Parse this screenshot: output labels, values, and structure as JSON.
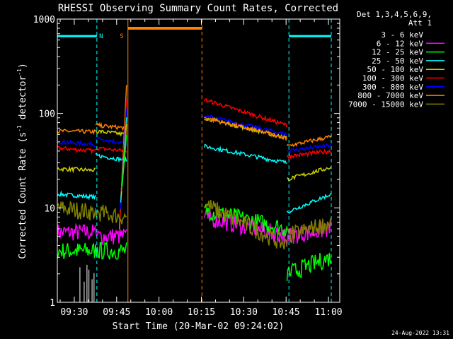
{
  "chart_data": {
    "type": "line",
    "title": "RHESSI Observing Summary Count Rates, Corrected",
    "xlabel": "Start Time (20-Mar-02 09:24:02)",
    "ylabel_main": "Corrected Count Rate (s",
    "ylabel_sup1": "-1",
    "ylabel_mid": " detector",
    "ylabel_sup2": "-1",
    "ylabel_end": ")",
    "yscale": "log",
    "ylim": [
      1,
      1000
    ],
    "xlim_minutes": [
      0,
      100
    ],
    "y_ticks": [
      {
        "value": 1,
        "label": "1"
      },
      {
        "value": 10,
        "label": "10"
      },
      {
        "value": 100,
        "label": "100"
      },
      {
        "value": 1000,
        "label": "1000"
      }
    ],
    "x_ticks": [
      {
        "minute": 6,
        "label": "09:30"
      },
      {
        "minute": 21,
        "label": "09:45"
      },
      {
        "minute": 36,
        "label": "10:00"
      },
      {
        "minute": 51,
        "label": "10:15"
      },
      {
        "minute": 66,
        "label": "10:30"
      },
      {
        "minute": 81,
        "label": "10:45"
      },
      {
        "minute": 96,
        "label": "11:00"
      }
    ],
    "legend_header": [
      "Det 1,3,4,5,6,9,",
      "Att 1"
    ],
    "series": [
      {
        "name": "3 - 6 keV",
        "color": "#000000"
      },
      {
        "name": "6 - 12 keV",
        "color": "#ff00ff"
      },
      {
        "name": "12 - 25 keV",
        "color": "#00ff00"
      },
      {
        "name": "25 - 50 keV",
        "color": "#00ffff"
      },
      {
        "name": "50 - 100 keV",
        "color": "#d0d000"
      },
      {
        "name": "100 - 300 keV",
        "color": "#ff0000"
      },
      {
        "name": "300 - 800 keV",
        "color": "#0000ff"
      },
      {
        "name": "800 - 7000 keV",
        "color": "#ff8000"
      },
      {
        "name": "7000 - 15000 keV",
        "color": "#808000"
      }
    ],
    "segments": [
      {
        "start": 0,
        "end": 13.5,
        "values": {
          "6 - 12 keV": [
            5.5,
            5.5
          ],
          "12 - 25 keV": [
            3.5,
            3.5
          ],
          "25 - 50 keV": [
            14,
            13
          ],
          "50 - 100 keV": [
            26,
            25
          ],
          "100 - 300 keV": [
            43,
            40
          ],
          "300 - 800 keV": [
            50,
            47
          ],
          "800 - 7000 keV": [
            65,
            64
          ],
          "7000 - 15000 keV": [
            10,
            9
          ]
        }
      },
      {
        "start": 13.5,
        "end": 24.5,
        "values": {
          "6 - 12 keV": [
            5,
            5
          ],
          "12 - 25 keV": [
            3.5,
            3.5
          ],
          "25 - 50 keV": [
            36,
            32
          ],
          "50 - 100 keV": [
            65,
            60
          ],
          "100 - 300 keV": [
            43,
            40
          ],
          "300 - 800 keV": [
            55,
            48
          ],
          "800 - 7000 keV": [
            75,
            70
          ],
          "7000 - 15000 keV": [
            9,
            8
          ]
        }
      },
      {
        "start": 52,
        "end": 81.3,
        "values": {
          "6 - 12 keV": [
            8,
            5
          ],
          "12 - 25 keV": [
            9.5,
            6
          ],
          "25 - 50 keV": [
            45,
            30
          ],
          "50 - 100 keV": [
            90,
            55
          ],
          "100 - 300 keV": [
            140,
            75
          ],
          "300 - 800 keV": [
            95,
            60
          ],
          "800 - 7000 keV": [
            90,
            55
          ],
          "7000 - 15000 keV": [
            11,
            4
          ]
        }
      },
      {
        "start": 81.3,
        "end": 97,
        "values": {
          "6 - 12 keV": [
            5,
            6
          ],
          "12 - 25 keV": [
            2,
            3
          ],
          "25 - 50 keV": [
            9,
            14
          ],
          "50 - 100 keV": [
            20,
            27
          ],
          "100 - 300 keV": [
            35,
            40
          ],
          "300 - 800 keV": [
            40,
            46
          ],
          "800 - 7000 keV": [
            45,
            57
          ],
          "7000 - 15000 keV": [
            5,
            7
          ]
        }
      }
    ],
    "rise": {
      "start": 22,
      "end": 24.5,
      "range": [
        6,
        200
      ]
    },
    "saa_bar": {
      "start": 25,
      "end": 51.2,
      "value": 800
    },
    "night_bars": [
      {
        "start": 0,
        "end": 14,
        "value": 660
      },
      {
        "start": 82,
        "end": 97,
        "value": 660
      }
    ],
    "night_lines": [
      0,
      14,
      82,
      97
    ],
    "saa_lines": [
      25,
      51.2
    ],
    "flag_labels": [
      {
        "text": "N",
        "minute": 15.5,
        "color": "#00ffff"
      },
      {
        "text": "S",
        "minute": 22.8,
        "color": "#ff8000"
      }
    ],
    "timestamp": "24-Aug-2022 13:31"
  }
}
